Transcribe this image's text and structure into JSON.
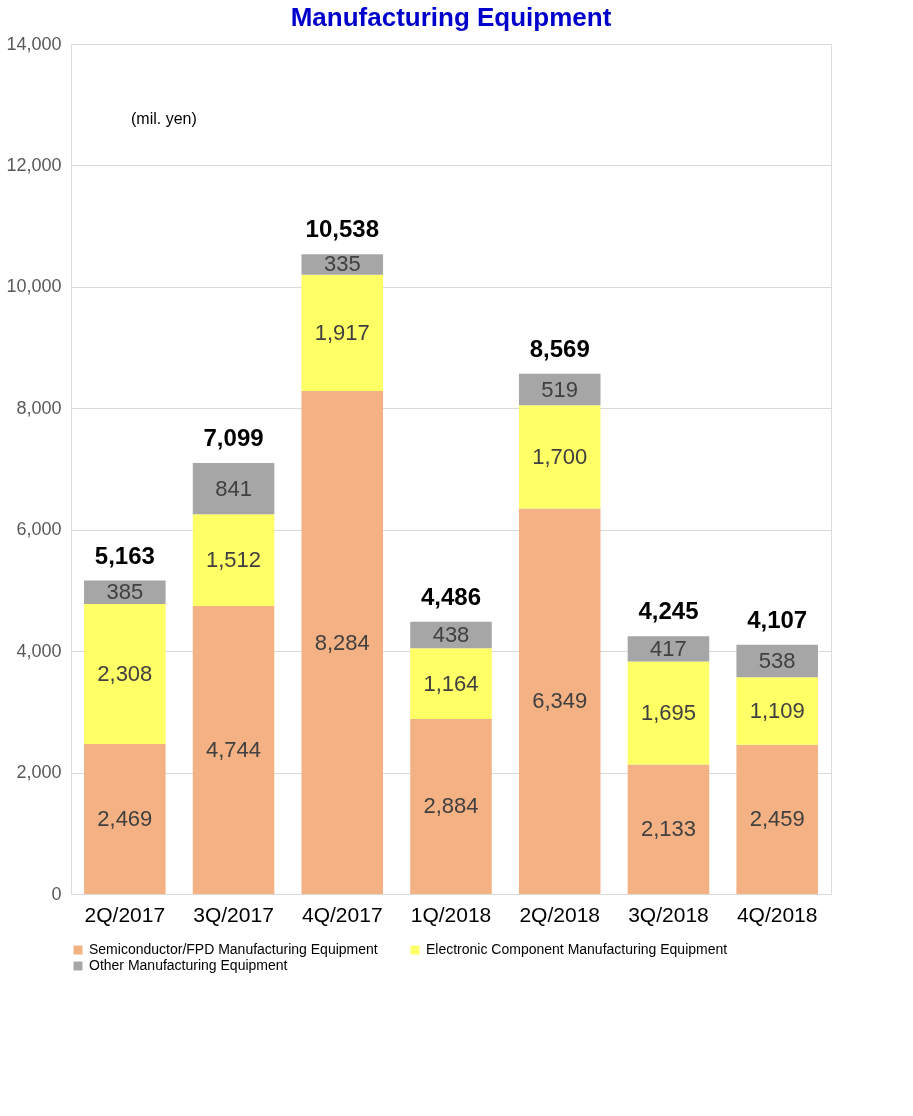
{
  "chart_data": {
    "type": "bar",
    "title": "Manufacturing Equipment",
    "stacked": true,
    "categories": [
      "2Q/2017",
      "3Q/2017",
      "4Q/2017",
      "1Q/2018",
      "2Q/2018",
      "3Q/2018",
      "4Q/2018"
    ],
    "series": [
      {
        "name": "Semiconductor/FPD Manufacturing Equipment",
        "color": "#f4b183",
        "values": [
          2469,
          4744,
          8284,
          2884,
          6349,
          2133,
          2459
        ],
        "value_labels": [
          "2,469",
          "4,744",
          "8,284",
          "2,884",
          "6,349",
          "2,133",
          "2,459"
        ]
      },
      {
        "name": "Electronic Component Manufacturing Equipment",
        "color": "#ffff66",
        "values": [
          2308,
          1512,
          1917,
          1164,
          1700,
          1695,
          1109
        ],
        "value_labels": [
          "2,308",
          "1,512",
          "1,917",
          "1,164",
          "1,700",
          "1,695",
          "1,109"
        ]
      },
      {
        "name": "Other Manufacturing Equipment",
        "color": "#a6a6a6",
        "values": [
          385,
          841,
          335,
          438,
          519,
          417,
          538
        ],
        "value_labels": [
          "385",
          "841",
          "335",
          "438",
          "519",
          "417",
          "538"
        ]
      }
    ],
    "totals": [
      "5,163",
      "7,099",
      "10,538",
      "4,486",
      "8,569",
      "4,245",
      "4,107"
    ],
    "ylim": [
      0,
      14000
    ],
    "yticks": [
      0,
      {
        "value": 2000,
        "label": "2,000"
      },
      {
        "value": 4000,
        "label": "4,000"
      },
      {
        "value": 6000,
        "label": "6,000"
      },
      {
        "value": 8000,
        "label": "8,000"
      },
      {
        "value": 10000,
        "label": "10,000"
      },
      {
        "value": 12000,
        "label": "12,000"
      },
      {
        "value": 14000,
        "label": "14,000"
      }
    ],
    "grid": "y",
    "legend": "bottom",
    "annotations": [
      "(mil. yen)"
    ]
  }
}
